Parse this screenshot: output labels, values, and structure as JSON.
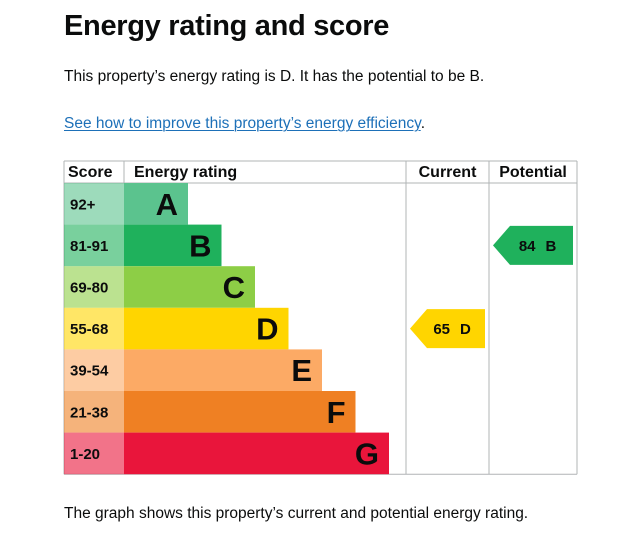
{
  "page": {
    "title": "Energy rating and score",
    "summary": "This property’s energy rating is D. It has the potential to be B.",
    "link_text": "See how to improve this property’s energy efficiency",
    "link_suffix": ".",
    "footer": "The graph shows this property’s current and potential energy rating."
  },
  "chart_data": {
    "type": "bar",
    "headers": {
      "score": "Score",
      "rating": "Energy rating",
      "current": "Current",
      "potential": "Potential"
    },
    "bands": [
      {
        "score": "92+",
        "letter": "A",
        "color": "#5bc38e"
      },
      {
        "score": "81-91",
        "letter": "B",
        "color": "#1fb15c"
      },
      {
        "score": "69-80",
        "letter": "C",
        "color": "#8dce46"
      },
      {
        "score": "55-68",
        "letter": "D",
        "color": "#ffd500"
      },
      {
        "score": "39-54",
        "letter": "E",
        "color": "#fcaa65"
      },
      {
        "score": "21-38",
        "letter": "F",
        "color": "#ef8023"
      },
      {
        "score": "1-20",
        "letter": "G",
        "color": "#e9153b"
      }
    ],
    "current": {
      "score": 65,
      "letter": "D",
      "color": "#ffd500"
    },
    "potential": {
      "score": 84,
      "letter": "B",
      "color": "#1fb15c"
    }
  }
}
